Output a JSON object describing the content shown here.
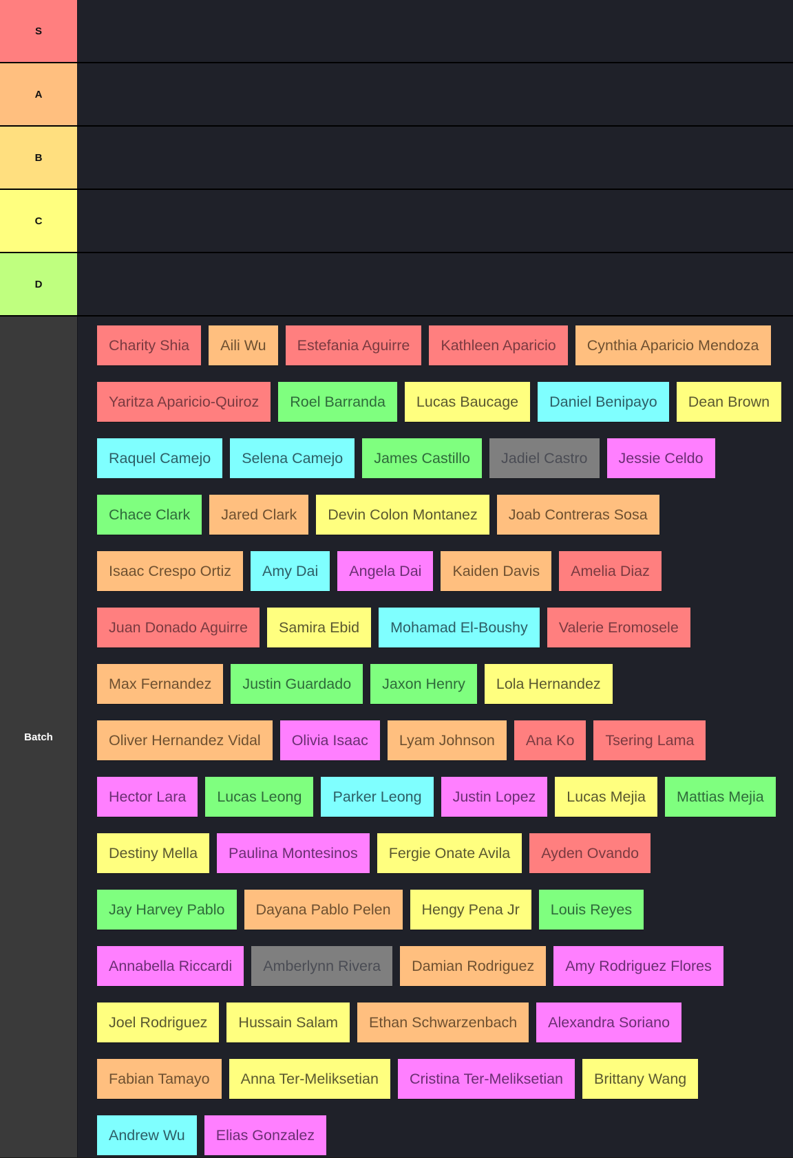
{
  "tiers": [
    {
      "label": "S",
      "color": "#ff7f7f",
      "items": []
    },
    {
      "label": "A",
      "color": "#ffbf7f",
      "items": []
    },
    {
      "label": "B",
      "color": "#ffdf7f",
      "items": []
    },
    {
      "label": "C",
      "color": "#ffff7f",
      "items": []
    },
    {
      "label": "D",
      "color": "#bfff7f",
      "items": []
    }
  ],
  "batch": {
    "label": "Batch",
    "color": "#3a3a3a",
    "items": [
      {
        "name": "Charity Shia",
        "color": "red"
      },
      {
        "name": "Aili Wu",
        "color": "orange"
      },
      {
        "name": "Estefania Aguirre",
        "color": "red"
      },
      {
        "name": "Kathleen Aparicio",
        "color": "red"
      },
      {
        "name": "Cynthia Aparicio Mendoza",
        "color": "orange"
      },
      {
        "name": "Yaritza Aparicio-Quiroz",
        "color": "red"
      },
      {
        "name": "Roel Barranda",
        "color": "green"
      },
      {
        "name": "Lucas Baucage",
        "color": "yellow"
      },
      {
        "name": "Daniel Benipayo",
        "color": "cyan"
      },
      {
        "name": "Dean Brown",
        "color": "yellow"
      },
      {
        "name": "Raquel Camejo",
        "color": "cyan"
      },
      {
        "name": "Selena Camejo",
        "color": "cyan"
      },
      {
        "name": "James Castillo",
        "color": "green"
      },
      {
        "name": "Jadiel Castro",
        "color": "gray"
      },
      {
        "name": "Jessie Celdo",
        "color": "magenta"
      },
      {
        "name": "Chace Clark",
        "color": "green"
      },
      {
        "name": "Jared Clark",
        "color": "orange"
      },
      {
        "name": "Devin Colon Montanez",
        "color": "yellow"
      },
      {
        "name": "Joab Contreras Sosa",
        "color": "orange"
      },
      {
        "name": "Isaac Crespo Ortiz",
        "color": "orange"
      },
      {
        "name": "Amy Dai",
        "color": "cyan"
      },
      {
        "name": "Angela Dai",
        "color": "magenta"
      },
      {
        "name": "Kaiden Davis",
        "color": "orange"
      },
      {
        "name": "Amelia Diaz",
        "color": "red"
      },
      {
        "name": "Juan Donado Aguirre",
        "color": "red"
      },
      {
        "name": "Samira Ebid",
        "color": "yellow"
      },
      {
        "name": "Mohamad El-Boushy",
        "color": "cyan"
      },
      {
        "name": "Valerie Eromosele",
        "color": "red"
      },
      {
        "name": "Max Fernandez",
        "color": "orange"
      },
      {
        "name": "Justin Guardado",
        "color": "green"
      },
      {
        "name": "Jaxon Henry",
        "color": "green"
      },
      {
        "name": "Lola Hernandez",
        "color": "yellow"
      },
      {
        "name": "Oliver Hernandez Vidal",
        "color": "orange"
      },
      {
        "name": "Olivia Isaac",
        "color": "magenta"
      },
      {
        "name": "Lyam Johnson",
        "color": "orange"
      },
      {
        "name": "Ana Ko",
        "color": "red"
      },
      {
        "name": "Tsering Lama",
        "color": "red"
      },
      {
        "name": "Hector Lara",
        "color": "magenta"
      },
      {
        "name": "Lucas Leong",
        "color": "green"
      },
      {
        "name": "Parker Leong",
        "color": "cyan"
      },
      {
        "name": "Justin Lopez",
        "color": "magenta"
      },
      {
        "name": "Lucas Mejia",
        "color": "yellow"
      },
      {
        "name": "Mattias Mejia",
        "color": "green"
      },
      {
        "name": "Destiny Mella",
        "color": "yellow"
      },
      {
        "name": "Paulina Montesinos",
        "color": "magenta"
      },
      {
        "name": "Fergie Onate Avila",
        "color": "yellow"
      },
      {
        "name": "Ayden Ovando",
        "color": "red"
      },
      {
        "name": "Jay Harvey Pablo",
        "color": "green"
      },
      {
        "name": "Dayana Pablo Pelen",
        "color": "orange"
      },
      {
        "name": "Hengy Pena Jr",
        "color": "yellow"
      },
      {
        "name": "Louis Reyes",
        "color": "green"
      },
      {
        "name": "Annabella Riccardi",
        "color": "magenta"
      },
      {
        "name": "Amberlynn Rivera",
        "color": "gray"
      },
      {
        "name": "Damian Rodriguez",
        "color": "orange"
      },
      {
        "name": "Amy Rodriguez Flores",
        "color": "magenta"
      },
      {
        "name": "Joel Rodriguez",
        "color": "yellow"
      },
      {
        "name": "Hussain Salam",
        "color": "yellow"
      },
      {
        "name": "Ethan Schwarzenbach",
        "color": "orange"
      },
      {
        "name": "Alexandra Soriano",
        "color": "magenta"
      },
      {
        "name": "Fabian Tamayo",
        "color": "orange"
      },
      {
        "name": "Anna Ter-Meliksetian",
        "color": "yellow"
      },
      {
        "name": "Cristina Ter-Meliksetian",
        "color": "magenta"
      },
      {
        "name": "Brittany Wang",
        "color": "yellow"
      },
      {
        "name": "Andrew Wu",
        "color": "cyan"
      },
      {
        "name": "Elias Gonzalez",
        "color": "magenta"
      }
    ]
  },
  "colors": {
    "background": "#1f2129",
    "red": "#ff7f7f",
    "orange": "#ffbf7f",
    "yellow": "#ffff7f",
    "green": "#7fff7f",
    "cyan": "#7fffff",
    "magenta": "#ff7fff",
    "gray": "#7f7f7f"
  }
}
